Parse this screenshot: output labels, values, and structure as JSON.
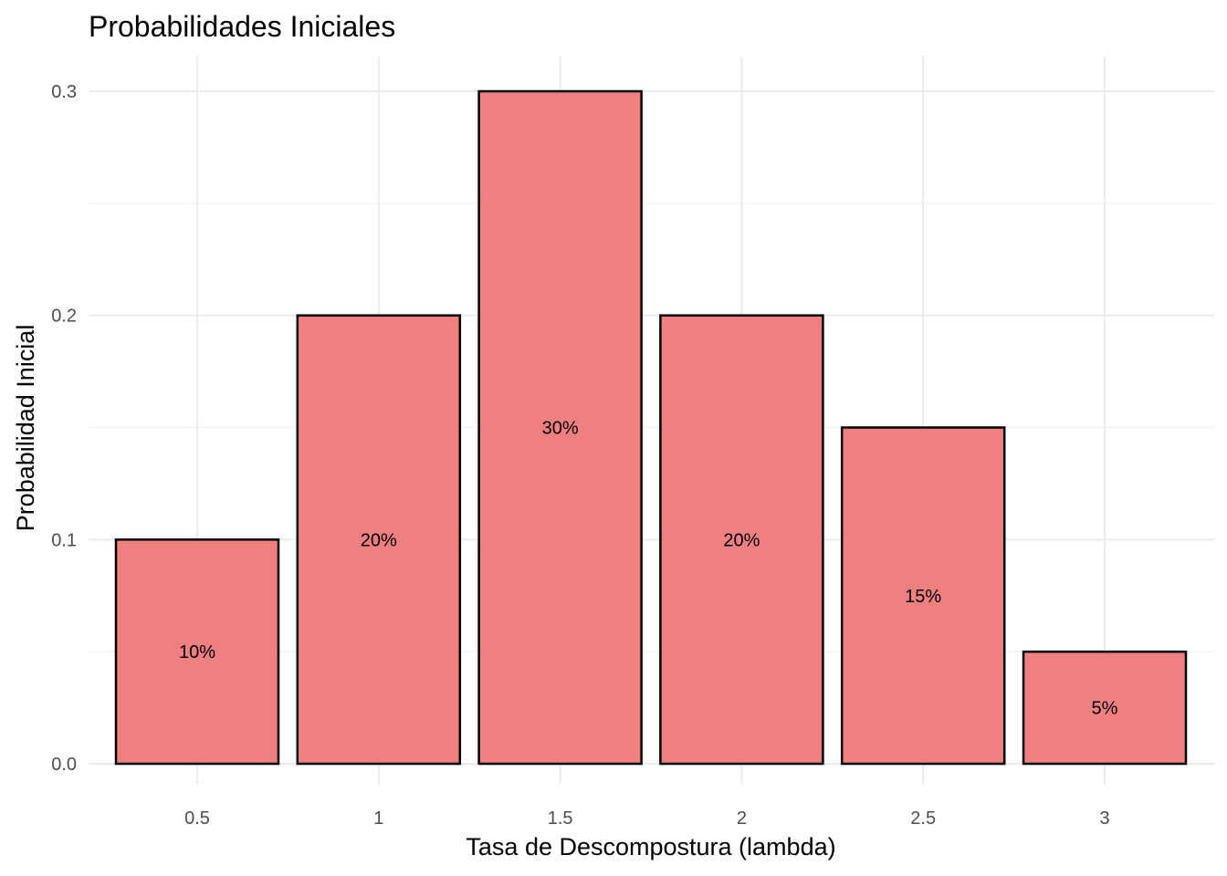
{
  "chart_data": {
    "type": "bar",
    "title": "Probabilidades Iniciales",
    "xlabel": "Tasa de Descompostura (lambda)",
    "ylabel": "Probabilidad Inicial",
    "categories": [
      "0.5",
      "1",
      "1.5",
      "2",
      "2.5",
      "3"
    ],
    "values": [
      0.1,
      0.2,
      0.3,
      0.2,
      0.15,
      0.05
    ],
    "data_labels": [
      "10%",
      "20%",
      "30%",
      "20%",
      "15%",
      "5%"
    ],
    "ylim": [
      0,
      0.3
    ],
    "yticks": [
      "0.0",
      "0.1",
      "0.2",
      "0.3"
    ],
    "ytick_values": [
      0,
      0.1,
      0.2,
      0.3
    ],
    "grid": true,
    "bar_color": "#F08080",
    "bar_edge_color": "#000000"
  }
}
